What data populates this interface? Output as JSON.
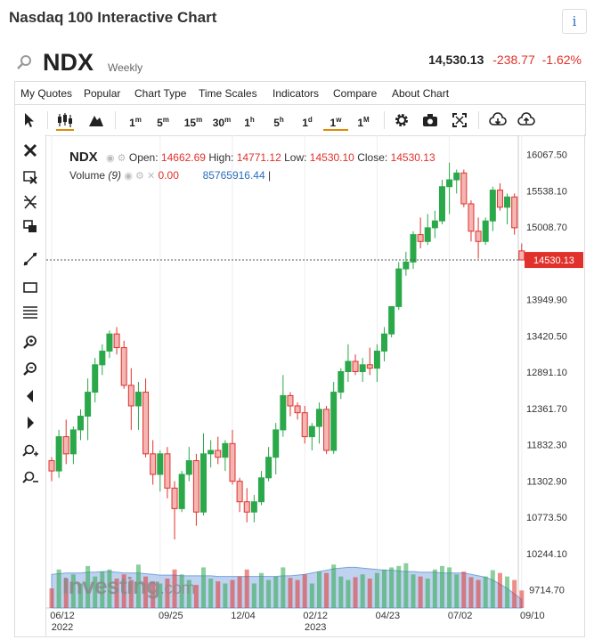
{
  "page": {
    "title": "Nasdaq 100 Interactive Chart"
  },
  "symbol": {
    "ticker": "NDX",
    "period": "Weekly",
    "last": "14,530.13",
    "change": "-238.77",
    "change_pct": "-1.62%"
  },
  "menu": [
    "My Quotes",
    "Popular",
    "Chart Type",
    "Time Scales",
    "Indicators",
    "Compare",
    "About Chart"
  ],
  "timeframes": [
    {
      "label": "1",
      "sup": "m"
    },
    {
      "label": "5",
      "sup": "m"
    },
    {
      "label": "15",
      "sup": "m"
    },
    {
      "label": "30",
      "sup": "m"
    },
    {
      "label": "1",
      "sup": "h"
    },
    {
      "label": "5",
      "sup": "h"
    },
    {
      "label": "1",
      "sup": "d"
    },
    {
      "label": "1",
      "sup": "w"
    },
    {
      "label": "1",
      "sup": "M"
    }
  ],
  "active_timeframe": "1w",
  "legend": {
    "symbol": "NDX",
    "open_label": "Open:",
    "open": "14662.69",
    "high_label": "High:",
    "high": "14771.12",
    "low_label": "Low:",
    "low": "14530.10",
    "close_label": "Close:",
    "close": "14530.13",
    "volume_label": "Volume",
    "volume_period": "(9)",
    "volume_value": "0.00",
    "volume_ma": "85765916.44"
  },
  "watermark": {
    "brand": "Investing",
    "suffix": ".com"
  },
  "colors": {
    "up": "#2aa84a",
    "down": "#e0312b",
    "accent": "#e08a00",
    "volume_area": "#a9c3ea",
    "link": "#2a6ebb"
  },
  "chart_data": {
    "type": "candlestick",
    "title": "Nasdaq 100 Interactive Chart",
    "symbol": "NDX",
    "interval": "weekly",
    "ylim": [
      9450,
      16350
    ],
    "y_ticks": [
      16067.5,
      15538.1,
      15008.7,
      14530.13,
      13949.9,
      13420.5,
      12891.1,
      12361.7,
      11832.3,
      11302.9,
      10773.5,
      10244.1,
      9714.7
    ],
    "current_price_label": "14530.13",
    "x_tick_labels": [
      {
        "label": "06/12",
        "sub": "2022",
        "index": 0
      },
      {
        "label": "09/25",
        "sub": "",
        "index": 15
      },
      {
        "label": "12/04",
        "sub": "",
        "index": 25
      },
      {
        "label": "02/12",
        "sub": "2023",
        "index": 35
      },
      {
        "label": "04/23",
        "sub": "",
        "index": 45
      },
      {
        "label": "07/02",
        "sub": "",
        "index": 55
      },
      {
        "label": "09/10",
        "sub": "",
        "index": 65
      }
    ],
    "ohlc": [
      [
        11600,
        11650,
        11300,
        11450
      ],
      [
        11450,
        12050,
        11350,
        11950
      ],
      [
        11950,
        12200,
        11550,
        11700
      ],
      [
        11700,
        12100,
        11550,
        12050
      ],
      [
        12050,
        12350,
        11900,
        12250
      ],
      [
        12250,
        12800,
        11900,
        12600
      ],
      [
        12600,
        13100,
        12450,
        13000
      ],
      [
        13000,
        13300,
        12850,
        13200
      ],
      [
        13200,
        13500,
        13100,
        13450
      ],
      [
        13450,
        13550,
        13150,
        13250
      ],
      [
        13250,
        13350,
        12650,
        12700
      ],
      [
        12700,
        12950,
        12050,
        12400
      ],
      [
        12400,
        12750,
        12050,
        12600
      ],
      [
        12600,
        12800,
        11650,
        11700
      ],
      [
        11700,
        11900,
        11250,
        11400
      ],
      [
        11400,
        11750,
        11150,
        11700
      ],
      [
        11700,
        11800,
        11050,
        11200
      ],
      [
        11200,
        11300,
        10450,
        10900
      ],
      [
        10900,
        11450,
        10850,
        11400
      ],
      [
        11400,
        11800,
        11300,
        11600
      ],
      [
        11600,
        11700,
        10650,
        10850
      ],
      [
        10850,
        12000,
        10800,
        11700
      ],
      [
        11700,
        11900,
        11500,
        11750
      ],
      [
        11750,
        11950,
        11550,
        11650
      ],
      [
        11650,
        11900,
        11450,
        11850
      ],
      [
        11850,
        12050,
        11250,
        11300
      ],
      [
        11300,
        11350,
        10850,
        11000
      ],
      [
        11000,
        11200,
        10700,
        10850
      ],
      [
        10850,
        11100,
        10700,
        11000
      ],
      [
        11000,
        11450,
        10950,
        11350
      ],
      [
        11350,
        11800,
        11300,
        11650
      ],
      [
        11650,
        12150,
        11400,
        12050
      ],
      [
        12050,
        12850,
        11950,
        12550
      ],
      [
        12550,
        12600,
        12250,
        12400
      ],
      [
        12400,
        12450,
        12200,
        12300
      ],
      [
        12300,
        12400,
        11850,
        11950
      ],
      [
        11950,
        12150,
        11750,
        12100
      ],
      [
        12100,
        12450,
        11850,
        12350
      ],
      [
        12350,
        12400,
        11700,
        11750
      ],
      [
        11750,
        12750,
        11700,
        12600
      ],
      [
        12600,
        12950,
        12500,
        12900
      ],
      [
        12900,
        13300,
        12750,
        13050
      ],
      [
        13050,
        13150,
        12850,
        12900
      ],
      [
        12900,
        13100,
        12750,
        13000
      ],
      [
        13000,
        13250,
        12850,
        12950
      ],
      [
        12950,
        13300,
        12750,
        13200
      ],
      [
        13200,
        13550,
        13050,
        13450
      ],
      [
        13450,
        13850,
        13400,
        13850
      ],
      [
        13850,
        14500,
        13800,
        14400
      ],
      [
        14400,
        14650,
        14300,
        14500
      ],
      [
        14500,
        14950,
        14400,
        14900
      ],
      [
        14900,
        15150,
        14700,
        14800
      ],
      [
        14800,
        15200,
        14750,
        15000
      ],
      [
        15000,
        15250,
        14850,
        15100
      ],
      [
        15100,
        15700,
        15050,
        15600
      ],
      [
        15600,
        15950,
        15200,
        15700
      ],
      [
        15700,
        15850,
        15500,
        15800
      ],
      [
        15800,
        15850,
        15300,
        15350
      ],
      [
        15350,
        15400,
        14800,
        14950
      ],
      [
        14950,
        15150,
        14550,
        14800
      ],
      [
        14800,
        15150,
        14750,
        15100
      ],
      [
        15100,
        15600,
        14950,
        15550
      ],
      [
        15550,
        15650,
        15250,
        15300
      ],
      [
        15300,
        15500,
        15050,
        15450
      ],
      [
        15450,
        15500,
        14900,
        15000
      ],
      [
        14662.69,
        14771.12,
        14530.1,
        14530.13
      ]
    ],
    "volume_index": [
      28,
      55,
      42,
      48,
      35,
      60,
      45,
      52,
      55,
      42,
      48,
      40,
      62,
      45,
      38,
      35,
      42,
      55,
      48,
      40,
      33,
      58,
      42,
      38,
      35,
      40,
      45,
      55,
      35,
      50,
      40,
      45,
      58,
      43,
      40,
      48,
      35,
      52,
      50,
      62,
      45,
      40,
      44,
      48,
      42,
      50,
      55,
      58,
      60,
      64,
      48,
      45,
      42,
      55,
      60,
      58,
      48,
      52,
      44,
      40,
      45,
      54,
      50,
      45,
      40,
      25
    ],
    "volume_ma_index": [
      48,
      49,
      50,
      50,
      50,
      51,
      51,
      52,
      52,
      51,
      50,
      50,
      50,
      49,
      48,
      47,
      47,
      47,
      46,
      46,
      46,
      46,
      46,
      45,
      45,
      45,
      45,
      45,
      45,
      45,
      45,
      45,
      46,
      46,
      47,
      48,
      50,
      52,
      54,
      56,
      57,
      58,
      58,
      57,
      56,
      55,
      54,
      54,
      53,
      52,
      52,
      51,
      51,
      51,
      50,
      50,
      50,
      50,
      48,
      46,
      44,
      40,
      34,
      28,
      20,
      12
    ]
  }
}
